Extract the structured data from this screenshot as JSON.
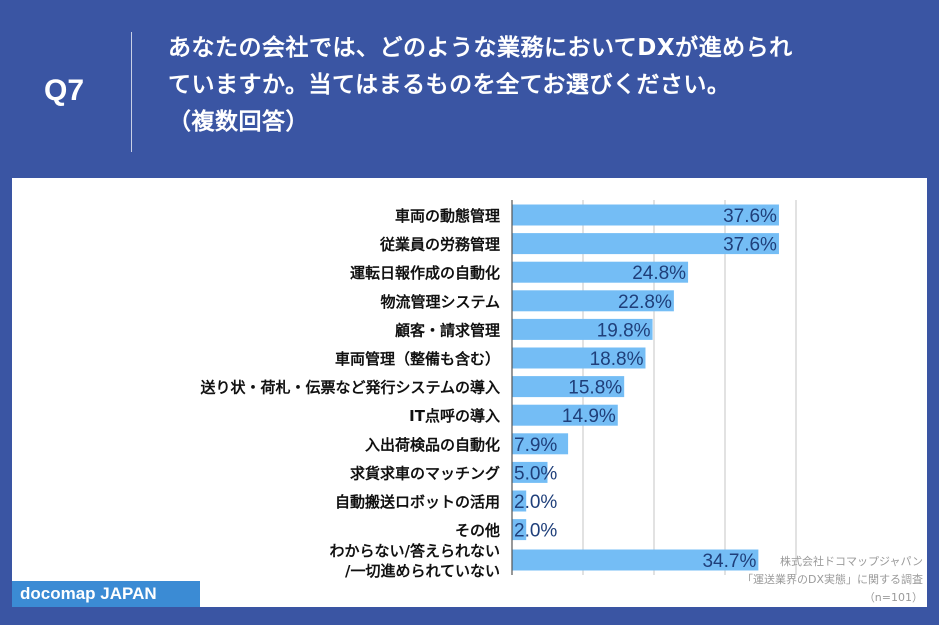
{
  "header": {
    "question_number": "Q7",
    "title_lines": [
      "あなたの会社では、どのような業務においてDXが進められ",
      "ていますか。当てはまるものを全てお選びください。",
      "（複数回答）"
    ]
  },
  "source": {
    "lines": [
      "株式会社ドコマップジャパン",
      "「運送業界のDX実態」に関する調査",
      "（n=101）"
    ]
  },
  "brand": "docomap JAPAN",
  "colors": {
    "background": "#3a55a3",
    "bar": "#74bdf5",
    "value_text": "#1f3f7a",
    "brand_bg": "#3b8bd4"
  },
  "chart_data": {
    "type": "bar",
    "orientation": "horizontal",
    "categories": [
      [
        "車両の動態管理"
      ],
      [
        "従業員の労務管理"
      ],
      [
        "運転日報作成の自動化"
      ],
      [
        "物流管理システム"
      ],
      [
        "顧客・請求管理"
      ],
      [
        "車両管理（整備も含む）"
      ],
      [
        "送り状・荷札・伝票など発行システムの導入"
      ],
      [
        "IT点呼の導入"
      ],
      [
        "入出荷検品の自動化"
      ],
      [
        "求貨求車のマッチング"
      ],
      [
        "自動搬送ロボットの活用"
      ],
      [
        "その他"
      ],
      [
        "わからない/答えられない",
        "/一切進められていない"
      ]
    ],
    "values": [
      37.6,
      37.6,
      24.8,
      22.8,
      19.8,
      18.8,
      15.8,
      14.9,
      7.9,
      5.0,
      2.0,
      2.0,
      34.7
    ],
    "value_labels": [
      "37.6%",
      "37.6%",
      "24.8%",
      "22.8%",
      "19.8%",
      "18.8%",
      "15.8%",
      "14.9%",
      "7.9%",
      "5.0%",
      "2.0%",
      "2.0%",
      "34.7%"
    ],
    "xlim": [
      0,
      60
    ],
    "gridlines": [
      10,
      20,
      30,
      40
    ],
    "grid": true
  }
}
